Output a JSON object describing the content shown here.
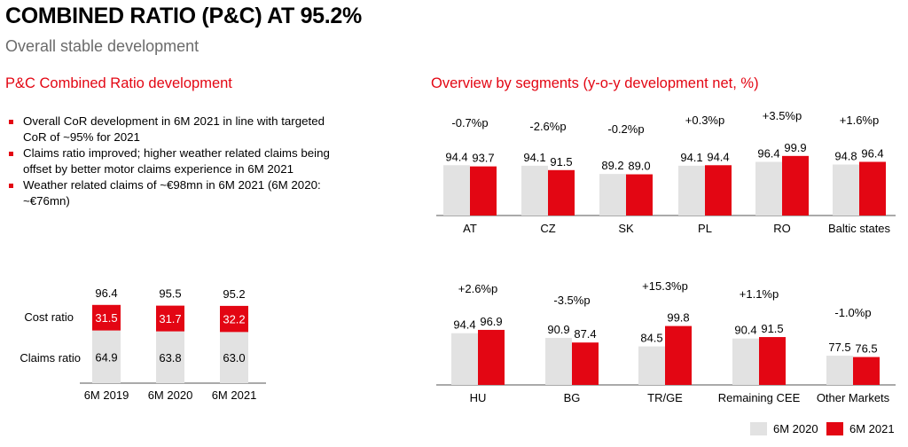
{
  "header": {
    "title": "COMBINED RATIO (P&C) AT 95.2%",
    "subtitle": "Overall stable development"
  },
  "left": {
    "heading": "P&C Combined Ratio development",
    "bullets": [
      "Overall CoR development in 6M 2021 in line with targeted CoR of ~95% for 2021",
      "Claims ratio improved; higher weather related claims being offset by better motor claims experience in 6M 2021",
      "Weather related claims of ~€98mn in 6M 2021 (6M 2020: ~€76mn)"
    ]
  },
  "right": {
    "heading": "Overview by segments (y-o-y development net, %)"
  },
  "colors": {
    "accent": "#e30613",
    "grey": "#e2e2e2",
    "red": "#e30613"
  },
  "chart_data": [
    {
      "type": "bar",
      "stacked": true,
      "categories": [
        "6M 2019",
        "6M 2020",
        "6M 2021"
      ],
      "series": [
        {
          "name": "Claims ratio",
          "values": [
            64.9,
            63.8,
            63.0
          ]
        },
        {
          "name": "Cost ratio",
          "values": [
            31.5,
            31.7,
            32.2
          ]
        }
      ],
      "totals": [
        "96.4",
        "95.5",
        "95.2"
      ],
      "claims_labels": [
        "64.9",
        "63.8",
        "63.0"
      ],
      "cost_labels": [
        "31.5",
        "31.7",
        "32.2"
      ]
    },
    {
      "type": "bar",
      "categories": [
        "AT",
        "CZ",
        "SK",
        "PL",
        "RO",
        "Baltic states"
      ],
      "series": [
        {
          "name": "6M 2020",
          "values": [
            94.4,
            94.1,
            89.2,
            94.1,
            96.4,
            94.8
          ]
        },
        {
          "name": "6M 2021",
          "values": [
            93.7,
            91.5,
            89.0,
            94.4,
            99.9,
            96.4
          ]
        }
      ],
      "labels_2020": [
        "94.4",
        "94.1",
        "89.2",
        "94.1",
        "96.4",
        "94.8"
      ],
      "labels_2021": [
        "93.7",
        "91.5",
        "89.0",
        "94.4",
        "99.9",
        "96.4"
      ],
      "deltas": [
        "-0.7%p",
        "-2.6%p",
        "-0.2%p",
        "+0.3%p",
        "+3.5%p",
        "+1.6%p"
      ]
    },
    {
      "type": "bar",
      "categories": [
        "HU",
        "BG",
        "TR/GE",
        "Remaining CEE",
        "Other Markets"
      ],
      "series": [
        {
          "name": "6M 2020",
          "values": [
            94.4,
            90.9,
            84.5,
            90.4,
            77.5
          ]
        },
        {
          "name": "6M 2021",
          "values": [
            96.9,
            87.4,
            99.8,
            91.5,
            76.5
          ]
        }
      ],
      "labels_2020": [
        "94.4",
        "90.9",
        "84.5",
        "90.4",
        "77.5"
      ],
      "labels_2021": [
        "96.9",
        "87.4",
        "99.8",
        "91.5",
        "76.5"
      ],
      "deltas": [
        "+2.6%p",
        "-3.5%p",
        "+15.3%p",
        "+1.1%p",
        "-1.0%p"
      ]
    }
  ],
  "legend": {
    "labels": [
      "6M 2020",
      "6M 2021"
    ]
  }
}
